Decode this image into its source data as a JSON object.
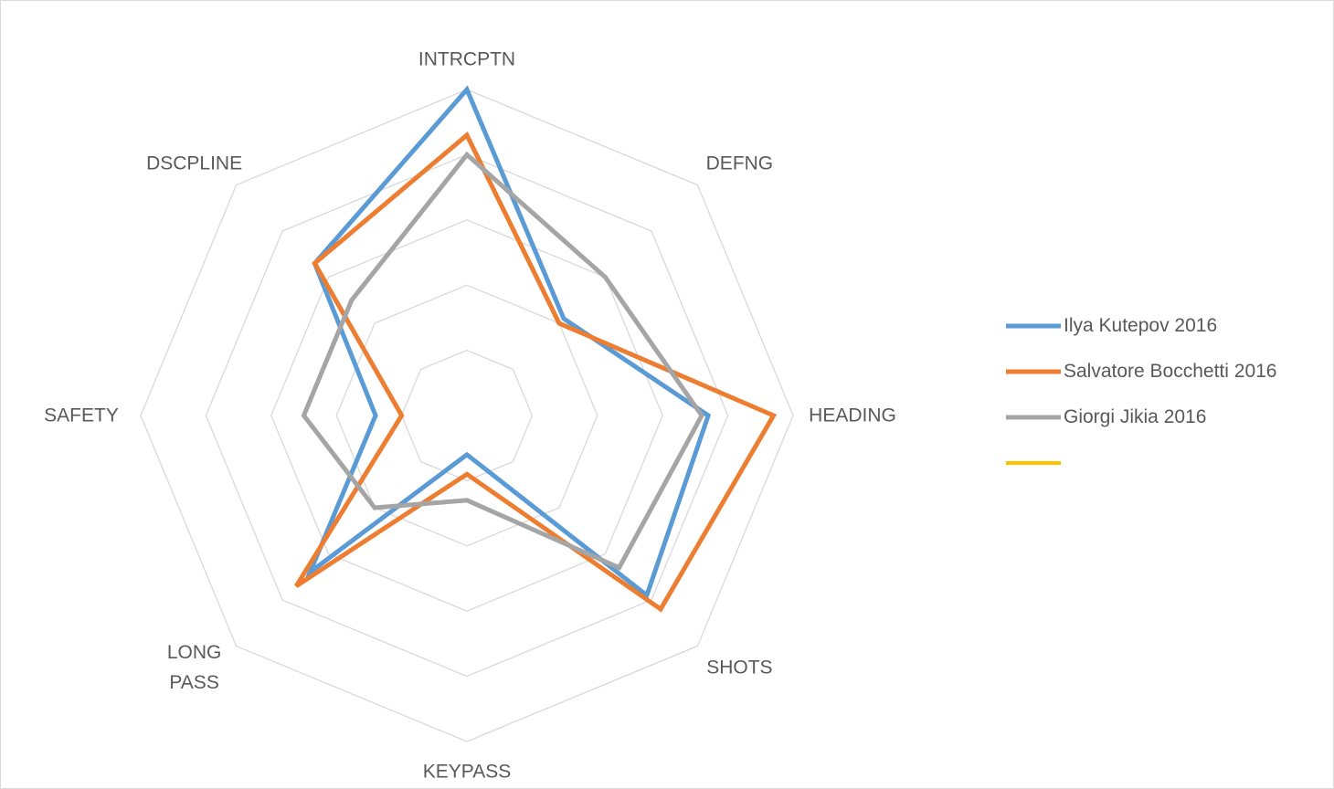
{
  "chart_data": {
    "type": "radar",
    "categories": [
      "INTRCPTN",
      "DEFNG",
      "HEADING",
      "SHOTS",
      "KEYPASS",
      "LONG PASS",
      "SAFETY",
      "DSCPLINE"
    ],
    "series": [
      {
        "name": "Ilya Kutepov 2016",
        "color": "#5b9bd5",
        "values": [
          5,
          2.1,
          3.7,
          3.9,
          0.6,
          3.4,
          1.4,
          3.3
        ]
      },
      {
        "name": "Salvatore Bocchetti 2016",
        "color": "#ed7d31",
        "values": [
          4.3,
          2.0,
          4.7,
          4.2,
          0.9,
          3.7,
          1.0,
          3.3
        ]
      },
      {
        "name": "Giorgi Jikia 2016",
        "color": "#a5a5a5",
        "values": [
          4.0,
          3.0,
          3.6,
          3.3,
          1.3,
          2.0,
          2.5,
          2.5
        ]
      }
    ],
    "ylim": [
      0,
      5
    ],
    "yticks": [
      1,
      2,
      3,
      4,
      5
    ],
    "grid": true,
    "legend": "right"
  }
}
